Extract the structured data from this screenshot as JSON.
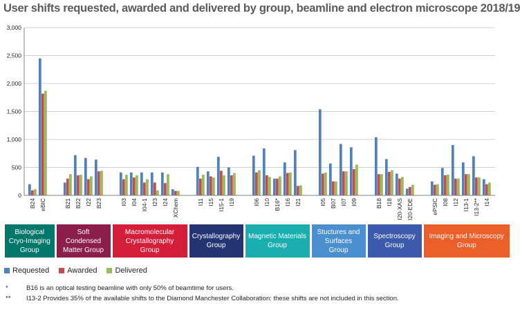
{
  "title": "User shifts requested, awarded and delivered by group, beamline and electron microscope 2018/19",
  "colors": {
    "Requested": "#4f81bd",
    "Awarded": "#c0504d",
    "Delivered": "#9bbb59"
  },
  "groups": [
    {
      "name": "Biological Cryo-Imaging Group",
      "color": "#00776b"
    },
    {
      "name": "Soft Condensed Matter Group",
      "color": "#8b1e4a"
    },
    {
      "name": "Macromolecular Crystallography Group",
      "color": "#d51f3a"
    },
    {
      "name": "Crystallography Group",
      "color": "#253574"
    },
    {
      "name": "Magnetic Materials Group",
      "color": "#1aaeae"
    },
    {
      "name": "Stuctures and Surfaces Group",
      "color": "#4a8fd0"
    },
    {
      "name": "Spectroscopy Group",
      "color": "#3c5bad"
    },
    {
      "name": "Imaging and Microscopy Group",
      "color": "#ed5f2a"
    }
  ],
  "legend": [
    "Requested",
    "Awarded",
    "Delivered"
  ],
  "notes": [
    {
      "mark": "*",
      "text": "B16 is an optical testing beamline with only 50% of beamtime for users."
    },
    {
      "mark": "**",
      "text": "I13-2 Provides 35% of the available shifts to the Diamond Manchester Collaboration: these shifts are not included in this section."
    }
  ],
  "chart_data": {
    "type": "bar",
    "title": "User shifts requested, awarded and delivered by group, beamline and electron microscope 2018/19",
    "xlabel": "",
    "ylabel": "",
    "ylim": [
      0,
      3000
    ],
    "yticks": [
      "0",
      "500",
      "1,000",
      "1,500",
      "2,000",
      "2,500",
      "3,000"
    ],
    "grid": true,
    "legend_position": "bottom-left",
    "series_names": [
      "Requested",
      "Awarded",
      "Delivered"
    ],
    "categories": [
      {
        "label": "B24",
        "group": 0,
        "values": [
          200,
          90,
          110
        ]
      },
      {
        "label": "eBIC",
        "group": 0,
        "values": [
          2450,
          1820,
          1870
        ]
      },
      {
        "label": "B21",
        "group": 1,
        "values": [
          230,
          300,
          380
        ]
      },
      {
        "label": "B22",
        "group": 1,
        "values": [
          720,
          360,
          370
        ]
      },
      {
        "label": "I22",
        "group": 1,
        "values": [
          670,
          290,
          340
        ]
      },
      {
        "label": "B23",
        "group": 1,
        "values": [
          640,
          430,
          440
        ]
      },
      {
        "label": "I03",
        "group": 2,
        "values": [
          410,
          290,
          370
        ]
      },
      {
        "label": "I04",
        "group": 2,
        "values": [
          410,
          320,
          360
        ]
      },
      {
        "label": "I04-1",
        "group": 2,
        "values": [
          410,
          230,
          290
        ]
      },
      {
        "label": "I23",
        "group": 2,
        "values": [
          410,
          230,
          90
        ]
      },
      {
        "label": "I24",
        "group": 2,
        "values": [
          410,
          220,
          380
        ]
      },
      {
        "label": "XChem",
        "group": 2,
        "values": [
          110,
          80,
          80
        ]
      },
      {
        "label": "I11",
        "group": 3,
        "values": [
          510,
          300,
          370
        ]
      },
      {
        "label": "I15",
        "group": 3,
        "values": [
          430,
          340,
          320
        ]
      },
      {
        "label": "I15-1",
        "group": 3,
        "values": [
          690,
          440,
          360
        ]
      },
      {
        "label": "I19",
        "group": 3,
        "values": [
          500,
          360,
          400
        ]
      },
      {
        "label": "I06",
        "group": 4,
        "values": [
          710,
          410,
          450
        ]
      },
      {
        "label": "I10",
        "group": 4,
        "values": [
          840,
          360,
          330
        ]
      },
      {
        "label": "B16*",
        "group": 4,
        "values": [
          300,
          300,
          340
        ]
      },
      {
        "label": "I16",
        "group": 4,
        "values": [
          590,
          400,
          410
        ]
      },
      {
        "label": "I21",
        "group": 4,
        "values": [
          810,
          170,
          180
        ]
      },
      {
        "label": "I05",
        "group": 5,
        "values": [
          1540,
          390,
          410
        ]
      },
      {
        "label": "B07",
        "group": 5,
        "values": [
          570,
          250,
          250
        ]
      },
      {
        "label": "I07",
        "group": 5,
        "values": [
          920,
          430,
          430
        ]
      },
      {
        "label": "I09",
        "group": 5,
        "values": [
          860,
          470,
          550
        ]
      },
      {
        "label": "B18",
        "group": 6,
        "values": [
          1040,
          380,
          380
        ]
      },
      {
        "label": "I18",
        "group": 6,
        "values": [
          650,
          420,
          450
        ]
      },
      {
        "label": "I20-XAS",
        "group": 6,
        "values": [
          390,
          300,
          330
        ]
      },
      {
        "label": "I20-EDE",
        "group": 6,
        "values": [
          120,
          150,
          190
        ]
      },
      {
        "label": "ePSIC",
        "group": 7,
        "values": [
          250,
          190,
          200
        ]
      },
      {
        "label": "I08",
        "group": 7,
        "values": [
          490,
          360,
          370
        ]
      },
      {
        "label": "I12",
        "group": 7,
        "values": [
          900,
          300,
          300
        ]
      },
      {
        "label": "I13-1",
        "group": 7,
        "values": [
          590,
          380,
          380
        ]
      },
      {
        "label": "I13-2**",
        "group": 7,
        "values": [
          700,
          320,
          320
        ]
      },
      {
        "label": "I14",
        "group": 7,
        "values": [
          290,
          200,
          230
        ]
      }
    ]
  }
}
